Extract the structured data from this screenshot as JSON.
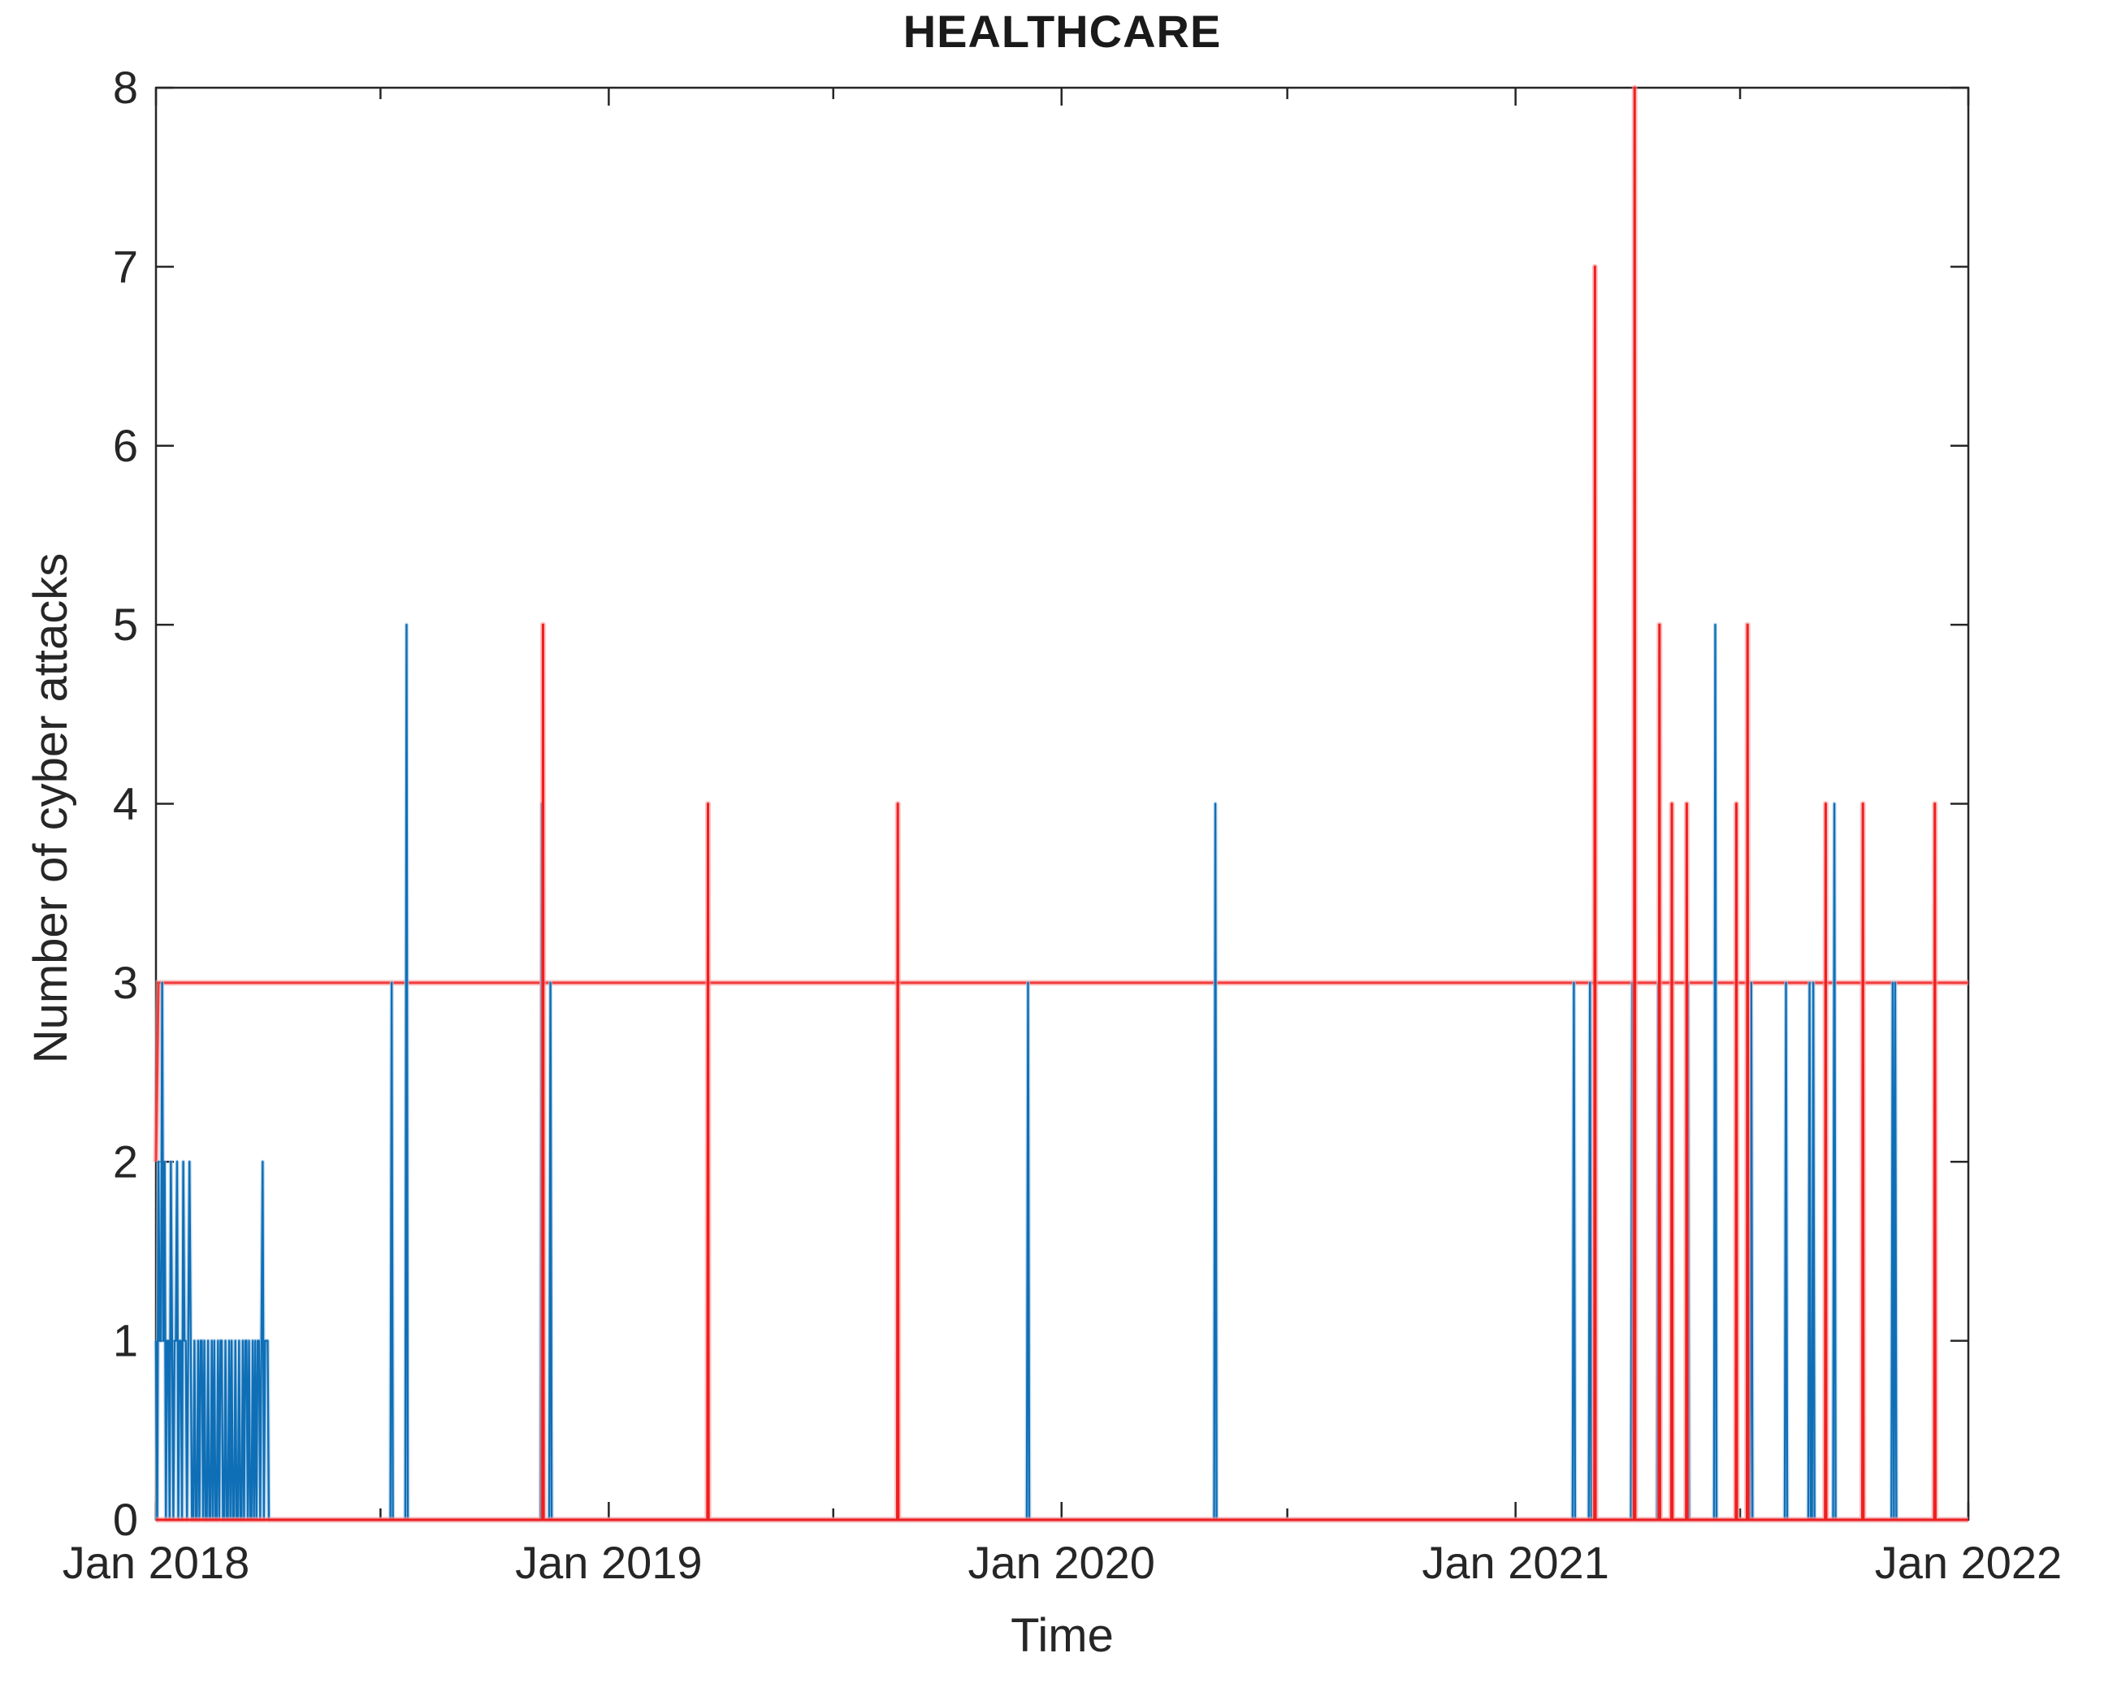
{
  "chart_data": {
    "type": "line",
    "title": "HEALTHCARE",
    "xlabel": "Time",
    "ylabel": "Number of cyber attacks",
    "x_tick_labels": [
      "Jan 2018",
      "Jan 2019",
      "Jan 2020",
      "Jan 2021",
      "Jan 2022"
    ],
    "x_tick_days": [
      0,
      365,
      730,
      1096,
      1461
    ],
    "x_minor_tick_days": [
      181,
      546,
      912,
      1277
    ],
    "y_ticks": [
      "0",
      "1",
      "2",
      "3",
      "4",
      "5",
      "6",
      "7",
      "8"
    ],
    "ylim": [
      0,
      8
    ],
    "date_range": [
      "2018-01-01",
      "2021-12-31"
    ],
    "days_total": 1461,
    "grid": false,
    "legend": "none",
    "axis_color": "#262626",
    "series": [
      {
        "name": "daily-cyber-attacks",
        "color": "#0f6fb6",
        "halo_color": "#a8cbe8",
        "background_segments": [
          {
            "days": 181,
            "pattern": "102110120110210112011021101201102011"
          },
          {
            "days": 184,
            "pattern": "011201102101120110211012011021011020"
          },
          {
            "days": 181,
            "pattern": "110210112011020110210120110211012010"
          },
          {
            "days": 184,
            "pattern": "101102110120110201102101101201102110"
          },
          {
            "days": 121,
            "pattern": "102110120110211012011020110121011021"
          },
          {
            "days": 45,
            "pattern": "100101101001011010010010110100101100"
          },
          {
            "days": 28,
            "pattern": "0000100000010000000100000100"
          },
          {
            "days": 80,
            "pattern": "100100101101001001010010110010010100"
          },
          {
            "days": 92,
            "pattern": "101101201100110210110100110110201101"
          },
          {
            "days": 90,
            "pattern": "110210110120110211011020110211012011"
          },
          {
            "days": 183,
            "pattern": "102110120112011021101201102101120110"
          },
          {
            "days": 92,
            "pattern": "121121211211212112112121121121211212"
          }
        ],
        "spikes": [
          {
            "day": 5,
            "value": 3,
            "date": "2018-01-06"
          },
          {
            "day": 190,
            "value": 3,
            "date": "2018-07-10"
          },
          {
            "day": 202,
            "value": 5,
            "date": "2018-07-22"
          },
          {
            "day": 311,
            "value": 4,
            "date": "2018-11-08"
          },
          {
            "day": 318,
            "value": 3,
            "date": "2018-11-15"
          },
          {
            "day": 703,
            "value": 3,
            "date": "2019-12-05"
          },
          {
            "day": 854,
            "value": 4,
            "date": "2020-05-04"
          },
          {
            "day": 1143,
            "value": 3,
            "date": "2021-02-17"
          },
          {
            "day": 1156,
            "value": 3,
            "date": "2021-03-02"
          },
          {
            "day": 1190,
            "value": 3,
            "date": "2021-04-05"
          },
          {
            "day": 1211,
            "value": 3,
            "date": "2021-04-26"
          },
          {
            "day": 1235,
            "value": 3,
            "date": "2021-05-20"
          },
          {
            "day": 1257,
            "value": 5,
            "date": "2021-06-11"
          },
          {
            "day": 1286,
            "value": 3,
            "date": "2021-07-10"
          },
          {
            "day": 1314,
            "value": 3,
            "date": "2021-08-07"
          },
          {
            "day": 1333,
            "value": 3,
            "date": "2021-08-26"
          },
          {
            "day": 1336,
            "value": 3,
            "date": "2021-08-29"
          },
          {
            "day": 1353,
            "value": 4,
            "date": "2021-09-15"
          },
          {
            "day": 1400,
            "value": 3,
            "date": "2021-11-01"
          },
          {
            "day": 1402,
            "value": 3,
            "date": "2021-11-03"
          }
        ]
      },
      {
        "name": "detection-spikes",
        "color": "#f01f1f",
        "halo_color": "#fa9a9a",
        "baseline": 0,
        "spikes": [
          {
            "day": 312,
            "value": 5,
            "date": "2018-11-09"
          },
          {
            "day": 445,
            "value": 4,
            "date": "2019-03-22"
          },
          {
            "day": 598,
            "value": 4,
            "date": "2019-08-22"
          },
          {
            "day": 1160,
            "value": 7,
            "date": "2021-03-06"
          },
          {
            "day": 1192,
            "value": 8,
            "date": "2021-04-07"
          },
          {
            "day": 1212,
            "value": 5,
            "date": "2021-04-27"
          },
          {
            "day": 1222,
            "value": 4,
            "date": "2021-05-07"
          },
          {
            "day": 1234,
            "value": 4,
            "date": "2021-05-19"
          },
          {
            "day": 1274,
            "value": 4,
            "date": "2021-06-28"
          },
          {
            "day": 1283,
            "value": 5,
            "date": "2021-07-07"
          },
          {
            "day": 1346,
            "value": 4,
            "date": "2021-09-08"
          },
          {
            "day": 1376,
            "value": 4,
            "date": "2021-10-08"
          },
          {
            "day": 1434,
            "value": 4,
            "date": "2021-12-05"
          }
        ]
      },
      {
        "name": "threshold-line",
        "color": "#f23b3b",
        "halo_color": "#fa9a9a",
        "level": 3,
        "start": {
          "day": 0,
          "value": 2,
          "rises_to_level_by_day": 2
        }
      }
    ]
  }
}
